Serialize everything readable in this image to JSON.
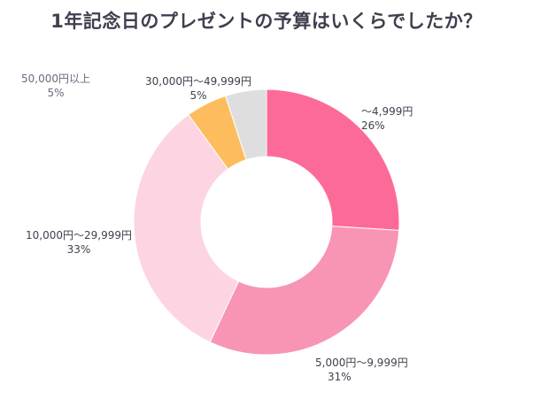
{
  "title": "1年記念日のプレゼントの予算はいくらでしたか？",
  "chart_data": {
    "type": "pie",
    "donut": true,
    "start_angle_deg": 0,
    "direction": "clockwise",
    "slices": [
      {
        "label": "～4,999円",
        "value": 26,
        "display": "26%",
        "color": "#fc6b98"
      },
      {
        "label": "5,000円～9,999円",
        "value": 31,
        "display": "31%",
        "color": "#f895b4"
      },
      {
        "label": "10,000円～29,999円",
        "value": 33,
        "display": "33%",
        "color": "#fdd4e2"
      },
      {
        "label": "30,000円～49,999円",
        "value": 5,
        "display": "5%",
        "color": "#fdbd5e"
      },
      {
        "label": "50,000円以上",
        "value": 5,
        "display": "5%",
        "color": "#dedede"
      }
    ]
  }
}
